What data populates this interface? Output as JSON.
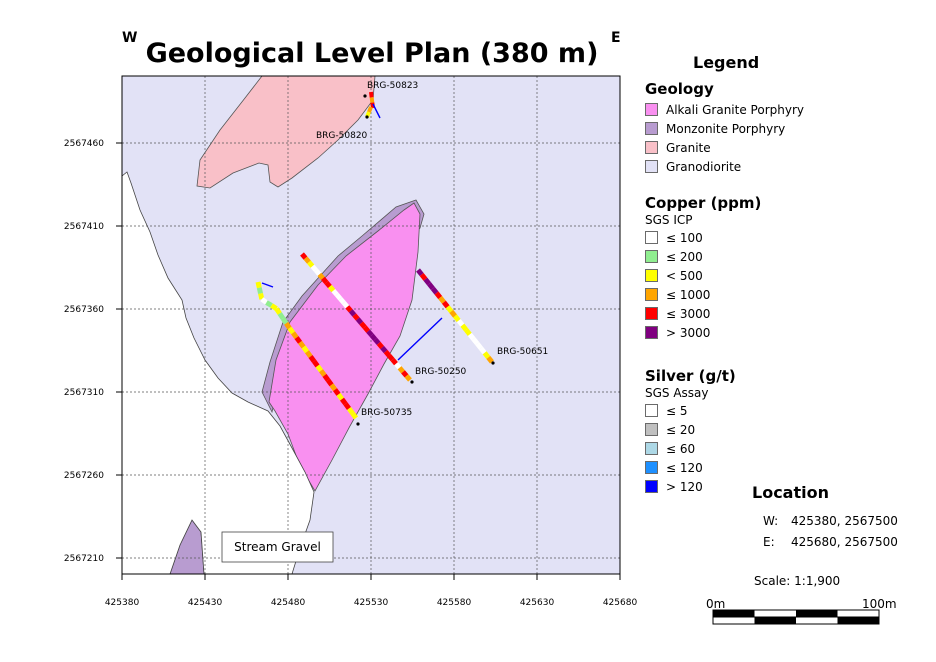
{
  "map": {
    "title": "Geological Level Plan (380 m)",
    "dir_west": "W",
    "dir_east": "E",
    "x_ticks": [
      "425380",
      "425430",
      "425480",
      "425530",
      "425580",
      "425630",
      "425680"
    ],
    "y_ticks": [
      "2567460",
      "2567410",
      "2567360",
      "2567310",
      "2567260",
      "2567210"
    ],
    "stream_label": "Stream Gravel",
    "holes": [
      "BRG-50823",
      "BRG-50820",
      "BRG-50651",
      "BRG-50250",
      "BRG-50735"
    ],
    "unit_colors": {
      "alkali": "#f990f0",
      "monzonite": "#b89cd0",
      "granite": "#f9c0c8",
      "granodiorite": "#e2e2f6"
    }
  },
  "legend": {
    "title": "Legend",
    "geology": {
      "heading": "Geology",
      "items": [
        {
          "label": "Alkali Granite Porphyry",
          "color": "#f990f0"
        },
        {
          "label": "Monzonite Porphyry",
          "color": "#b89cd0"
        },
        {
          "label": "Granite",
          "color": "#f9c0c8"
        },
        {
          "label": "Granodiorite",
          "color": "#e2e2f6"
        }
      ]
    },
    "copper": {
      "heading": "Copper (ppm)",
      "subheading": "SGS ICP",
      "items": [
        {
          "label": "≤ 100",
          "color": "#ffffff"
        },
        {
          "label": "≤ 200",
          "color": "#90ee90"
        },
        {
          "label": "< 500",
          "color": "#ffff00"
        },
        {
          "label": "≤ 1000",
          "color": "#ffa500"
        },
        {
          "label": "≤ 3000",
          "color": "#ff0000"
        },
        {
          "label": "> 3000",
          "color": "#800080"
        }
      ]
    },
    "silver": {
      "heading": "Silver (g/t)",
      "subheading": "SGS Assay",
      "items": [
        {
          "label": "≤ 5",
          "color": "#ffffff"
        },
        {
          "label": "≤ 20",
          "color": "#c0c0c0"
        },
        {
          "label": "≤ 60",
          "color": "#add8e6"
        },
        {
          "label": "≤ 120",
          "color": "#1e90ff"
        },
        {
          "label": "> 120",
          "color": "#0000ff"
        }
      ]
    }
  },
  "location": {
    "title": "Location",
    "w_label": "W:",
    "w_value": "425380, 2567500",
    "e_label": "E:",
    "e_value": "425680, 2567500"
  },
  "scale": {
    "label": "Scale: 1:1,900",
    "start": "0m",
    "end": "100m"
  }
}
